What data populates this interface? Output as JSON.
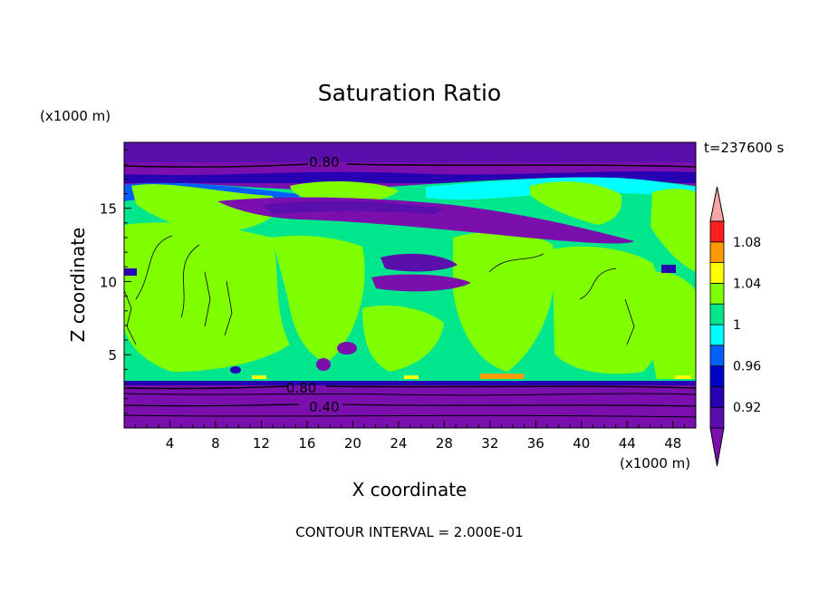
{
  "chart_data": {
    "type": "heatmap",
    "title": "Saturation Ratio",
    "xlabel": "X coordinate",
    "ylabel": "Z coordinate",
    "x_unit": "(x1000 m)",
    "y_unit": "(x1000 m)",
    "time_label": "t=237600 s",
    "footer": "CONTOUR INTERVAL = 2.000E-01",
    "xlim": [
      0,
      50
    ],
    "ylim": [
      0,
      19.5
    ],
    "x_ticks": [
      4,
      8,
      12,
      16,
      20,
      24,
      28,
      32,
      36,
      40,
      44,
      48
    ],
    "y_ticks": [
      5,
      10,
      15
    ],
    "colorbar": {
      "levels": [
        0.9,
        0.92,
        0.94,
        0.96,
        0.98,
        1.0,
        1.02,
        1.04,
        1.06,
        1.08,
        1.1
      ],
      "tick_labels": [
        "0.92",
        "0.96",
        "1",
        "1.04",
        "1.08"
      ],
      "tick_values": [
        0.92,
        0.96,
        1.0,
        1.04,
        1.08
      ],
      "colors": [
        "#5a0eab",
        "#2800b4",
        "#0000c8",
        "#0060ff",
        "#00ffff",
        "#00e68c",
        "#80ff00",
        "#ffff00",
        "#ff9900",
        "#ff2020",
        "#ff3300",
        "#ff9f9f"
      ],
      "under_color": "#7a0fad",
      "over_color": "#f7a6a6"
    },
    "contour_labels": [
      {
        "text": "0.80",
        "x": 17.5,
        "z": 18.2
      },
      {
        "text": "0.80",
        "x": 15.5,
        "z": 2.8
      },
      {
        "text": "0.40",
        "x": 17.5,
        "z": 1.5
      }
    ]
  }
}
